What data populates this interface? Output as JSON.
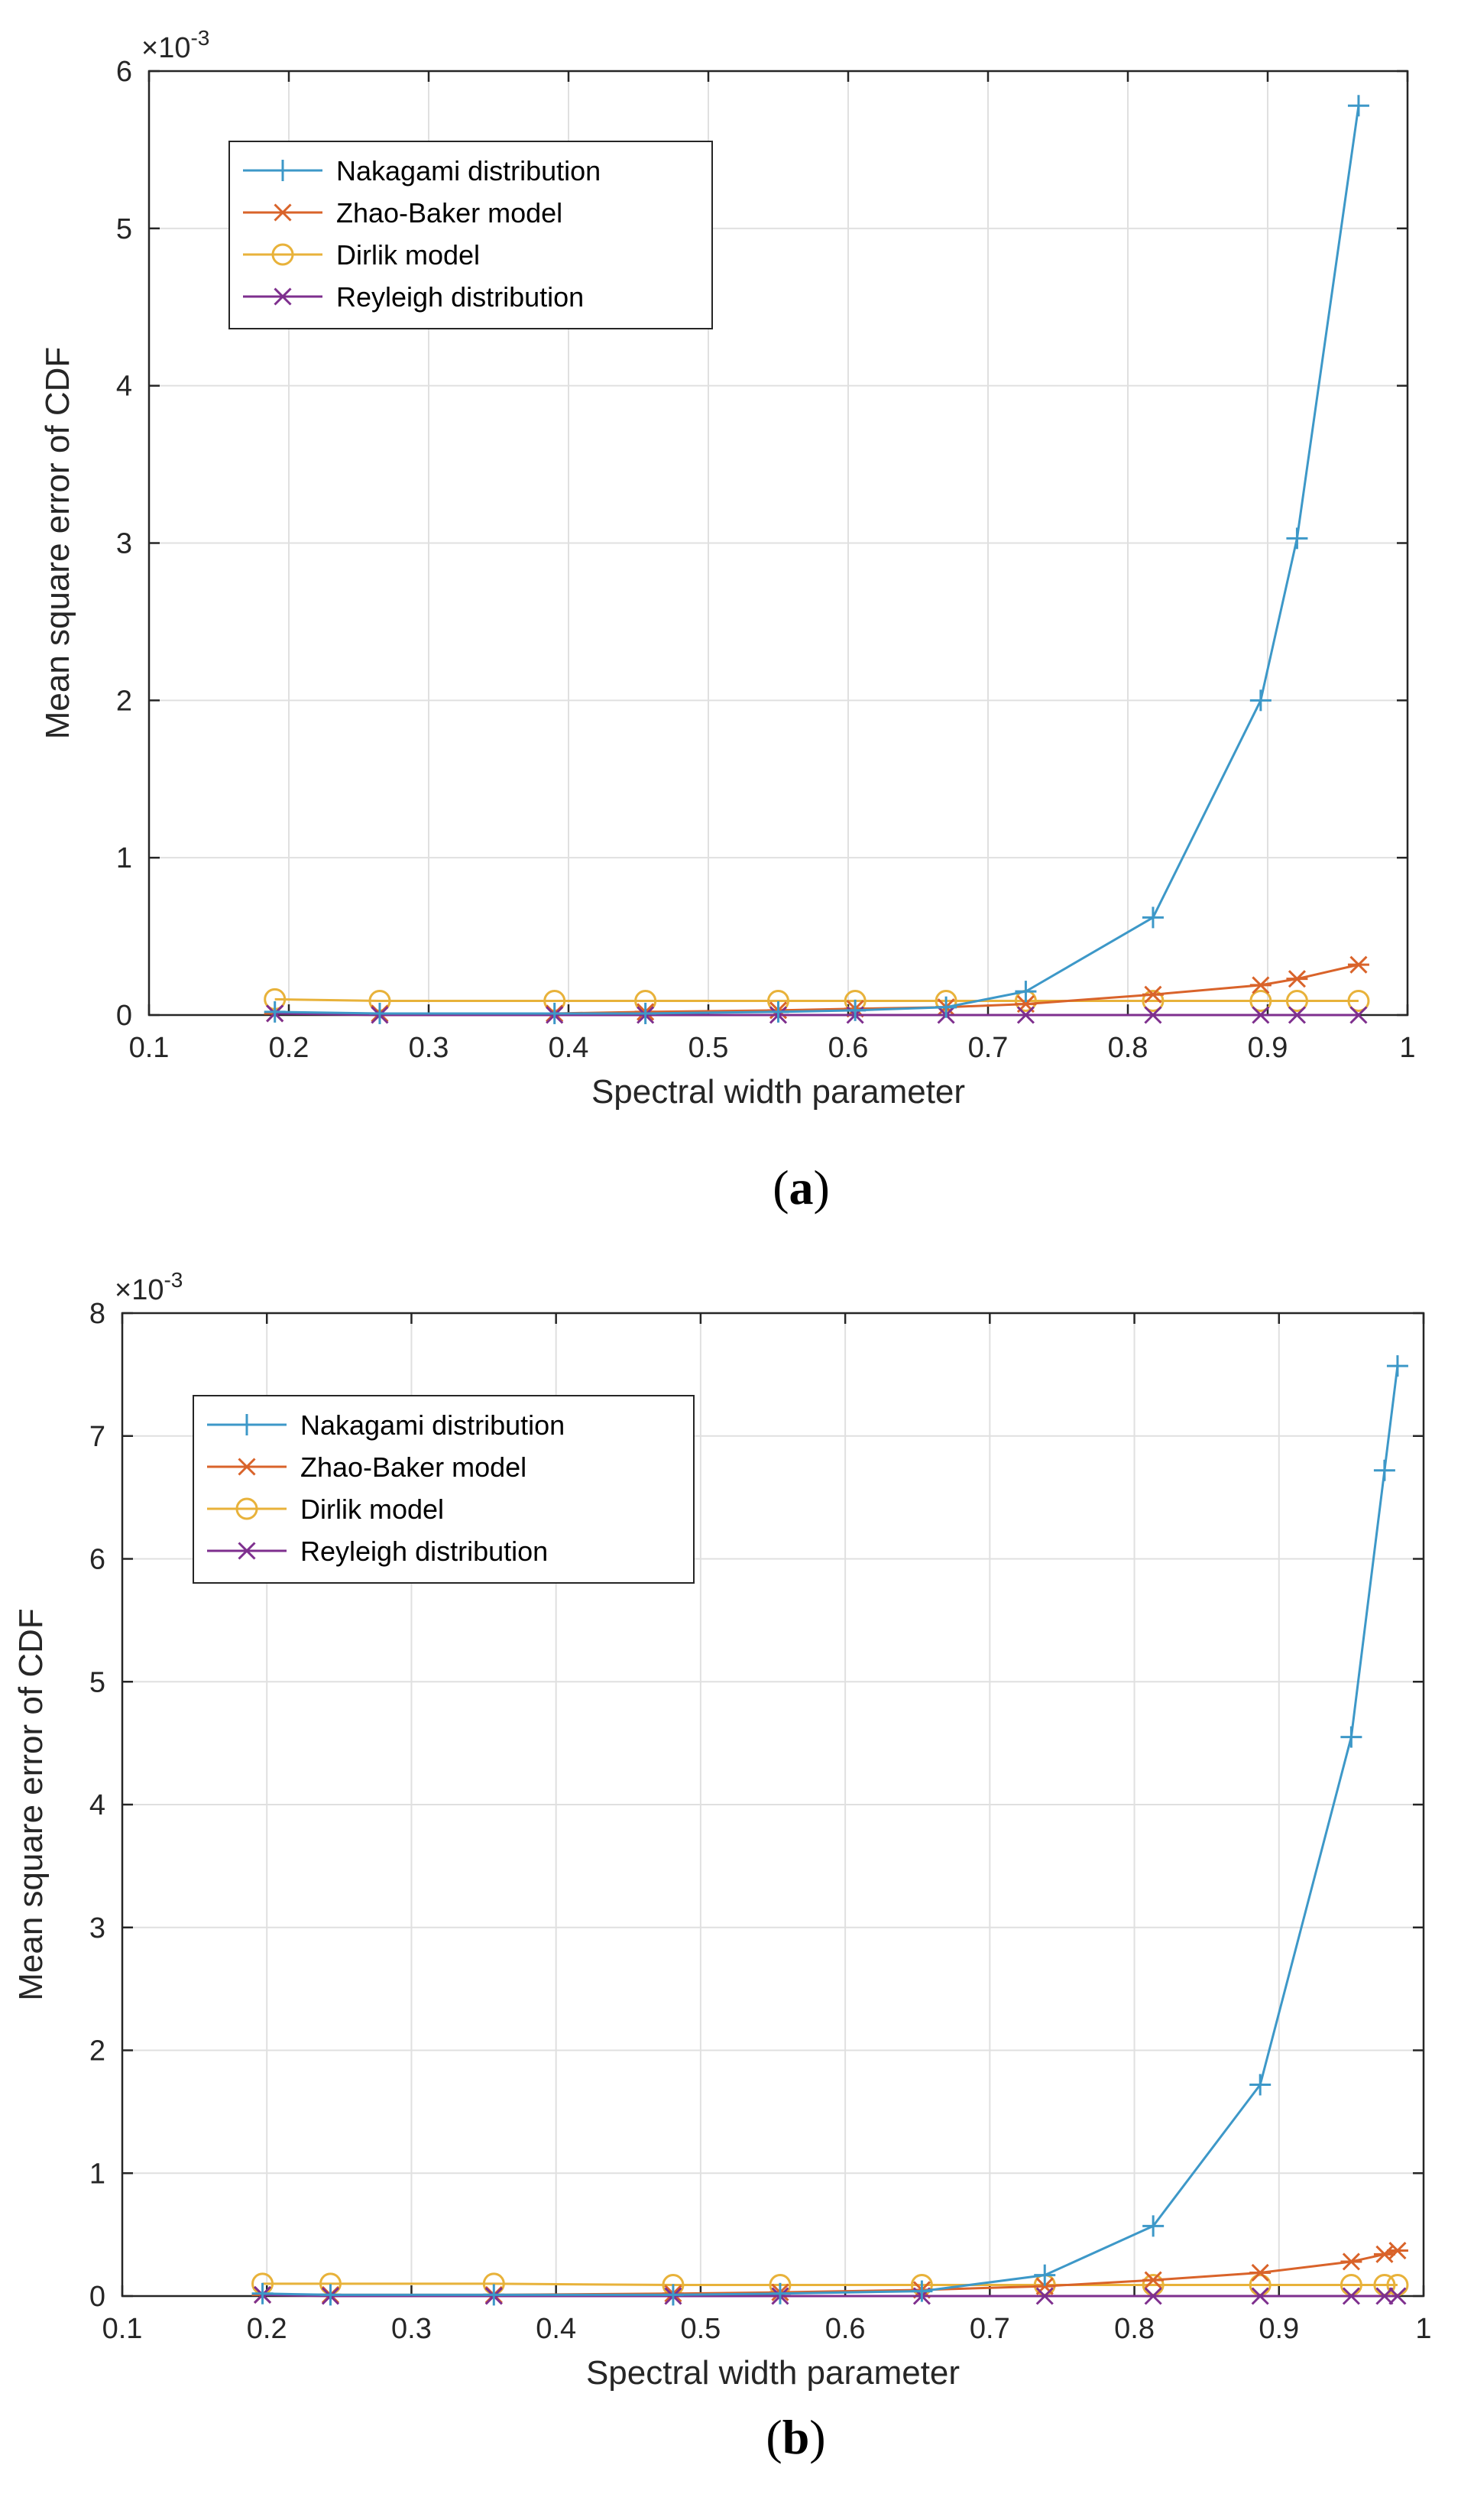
{
  "colors": {
    "nakagami": "#3d98c8",
    "zhao_baker": "#d9632a",
    "dirlik": "#e8b23a",
    "rayleigh": "#7e2f8e",
    "grid": "#e0e0e0",
    "axis": "#262626"
  },
  "chart_data": [
    {
      "type": "line",
      "caption": "a",
      "exponent_label": "×10",
      "exponent_power": "-3",
      "xlabel": "Spectral width parameter",
      "ylabel": "Mean square error of CDF",
      "xlim": [
        0.1,
        1.0
      ],
      "ylim": [
        0,
        6
      ],
      "xticks": [
        0.1,
        0.2,
        0.3,
        0.4,
        0.5,
        0.6,
        0.7,
        0.8,
        0.9,
        1.0
      ],
      "xtick_labels": [
        "0.1",
        "0.2",
        "0.3",
        "0.4",
        "0.5",
        "0.6",
        "0.7",
        "0.8",
        "0.9",
        "1"
      ],
      "yticks": [
        0,
        1,
        2,
        3,
        4,
        5,
        6
      ],
      "ytick_labels": [
        "0",
        "1",
        "2",
        "3",
        "4",
        "5",
        "6"
      ],
      "grid": true,
      "legend_position": "top-left",
      "x": [
        0.19,
        0.265,
        0.39,
        0.455,
        0.55,
        0.605,
        0.67,
        0.727,
        0.818,
        0.895,
        0.921,
        0.965
      ],
      "series": [
        {
          "name": "Nakagami distribution",
          "key": "nakagami",
          "marker": "plus",
          "values": [
            0.02,
            0.01,
            0.01,
            0.01,
            0.02,
            0.03,
            0.05,
            0.15,
            0.62,
            2.0,
            3.03,
            5.78
          ]
        },
        {
          "name": "Zhao-Baker model",
          "key": "zhao_baker",
          "marker": "asterisk",
          "values": [
            0.01,
            0.01,
            0.01,
            0.02,
            0.03,
            0.04,
            0.05,
            0.07,
            0.13,
            0.19,
            0.23,
            0.32
          ]
        },
        {
          "name": "Dirlik model",
          "key": "dirlik",
          "marker": "circle",
          "values": [
            0.1,
            0.09,
            0.09,
            0.09,
            0.09,
            0.09,
            0.09,
            0.09,
            0.09,
            0.09,
            0.09,
            0.09
          ]
        },
        {
          "name": "Reyleigh distribution",
          "key": "rayleigh",
          "marker": "cross",
          "values": [
            0.01,
            0.0,
            0.0,
            0.0,
            0.0,
            0.0,
            0.0,
            0.0,
            0.0,
            0.0,
            0.0,
            0.0
          ]
        }
      ]
    },
    {
      "type": "line",
      "caption": "b",
      "exponent_label": "×10",
      "exponent_power": "-3",
      "xlabel": "Spectral width parameter",
      "ylabel": "Mean square error of CDF",
      "xlim": [
        0.1,
        1.0
      ],
      "ylim": [
        0,
        8
      ],
      "xticks": [
        0.1,
        0.2,
        0.3,
        0.4,
        0.5,
        0.6,
        0.7,
        0.8,
        0.9,
        1.0
      ],
      "xtick_labels": [
        "0.1",
        "0.2",
        "0.3",
        "0.4",
        "0.5",
        "0.6",
        "0.7",
        "0.8",
        "0.9",
        "1"
      ],
      "yticks": [
        0,
        1,
        2,
        3,
        4,
        5,
        6,
        7,
        8
      ],
      "ytick_labels": [
        "0",
        "1",
        "2",
        "3",
        "4",
        "5",
        "6",
        "7",
        "8"
      ],
      "grid": true,
      "legend_position": "top-left",
      "x": [
        0.197,
        0.244,
        0.357,
        0.481,
        0.555,
        0.653,
        0.738,
        0.813,
        0.887,
        0.95,
        0.973,
        0.982
      ],
      "series": [
        {
          "name": "Nakagami distribution",
          "key": "nakagami",
          "marker": "plus",
          "values": [
            0.02,
            0.01,
            0.01,
            0.01,
            0.02,
            0.04,
            0.17,
            0.57,
            1.72,
            4.55,
            6.72,
            7.57
          ]
        },
        {
          "name": "Zhao-Baker model",
          "key": "zhao_baker",
          "marker": "asterisk",
          "values": [
            0.01,
            0.01,
            0.01,
            0.02,
            0.03,
            0.05,
            0.08,
            0.13,
            0.19,
            0.28,
            0.34,
            0.37
          ]
        },
        {
          "name": "Dirlik model",
          "key": "dirlik",
          "marker": "circle",
          "values": [
            0.1,
            0.1,
            0.1,
            0.09,
            0.09,
            0.09,
            0.09,
            0.09,
            0.09,
            0.09,
            0.09,
            0.09
          ]
        },
        {
          "name": "Reyleigh distribution",
          "key": "rayleigh",
          "marker": "cross",
          "values": [
            0.01,
            0.0,
            0.0,
            0.0,
            0.0,
            0.0,
            0.0,
            0.0,
            0.0,
            0.0,
            0.0,
            0.0
          ]
        }
      ]
    }
  ]
}
